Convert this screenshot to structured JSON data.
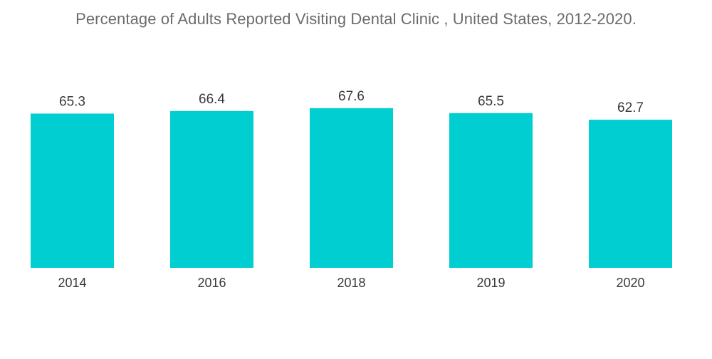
{
  "chart_data": {
    "type": "bar",
    "title": "Percentage of Adults Reported Visiting Dental Clinic , United States, 2012-2020.",
    "categories": [
      "2014",
      "2016",
      "2018",
      "2019",
      "2020"
    ],
    "values": [
      65.3,
      66.4,
      67.6,
      65.5,
      62.7
    ],
    "data_labels": [
      "65.3",
      "66.4",
      "67.6",
      "65.5",
      "62.7"
    ],
    "xlabel": "",
    "ylabel": "",
    "ylim": [
      0,
      70
    ],
    "grid": false,
    "legend": "none",
    "bar_color": "#00ced1"
  }
}
